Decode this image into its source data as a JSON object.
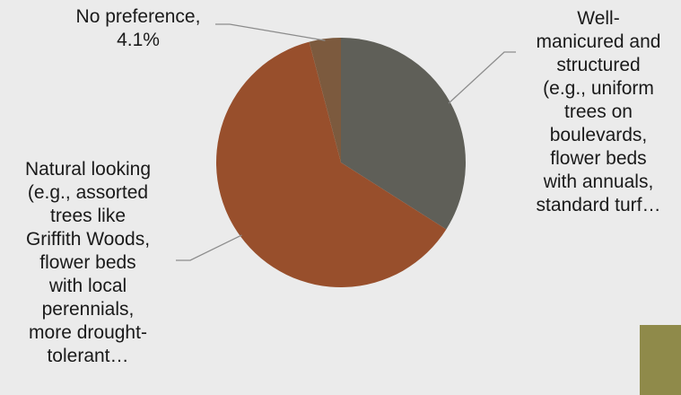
{
  "chart_data": {
    "type": "pie",
    "start_angle_deg": 0,
    "direction": "clockwise",
    "slices": [
      {
        "label": "Well-\nmanicured and\nstructured\n(e.g., uniform\ntrees on\nboulevards,\nflower beds\nwith annuals,\nstandard turf…",
        "value": 34.0,
        "color": "#5f5f58"
      },
      {
        "label": "Natural looking\n(e.g., assorted\ntrees like\nGriffith Woods,\nflower beds\nwith local\nperennials,\nmore drought-\ntolerant…",
        "value": 61.9,
        "color": "#984f2c"
      },
      {
        "label": "No preference,\n4.1%",
        "value": 4.1,
        "color": "#7c5a3e"
      }
    ]
  },
  "colors": {
    "background": "#ebebeb",
    "leader_line": "#8c8c8c",
    "corner_accent": "#8f8a4a"
  }
}
